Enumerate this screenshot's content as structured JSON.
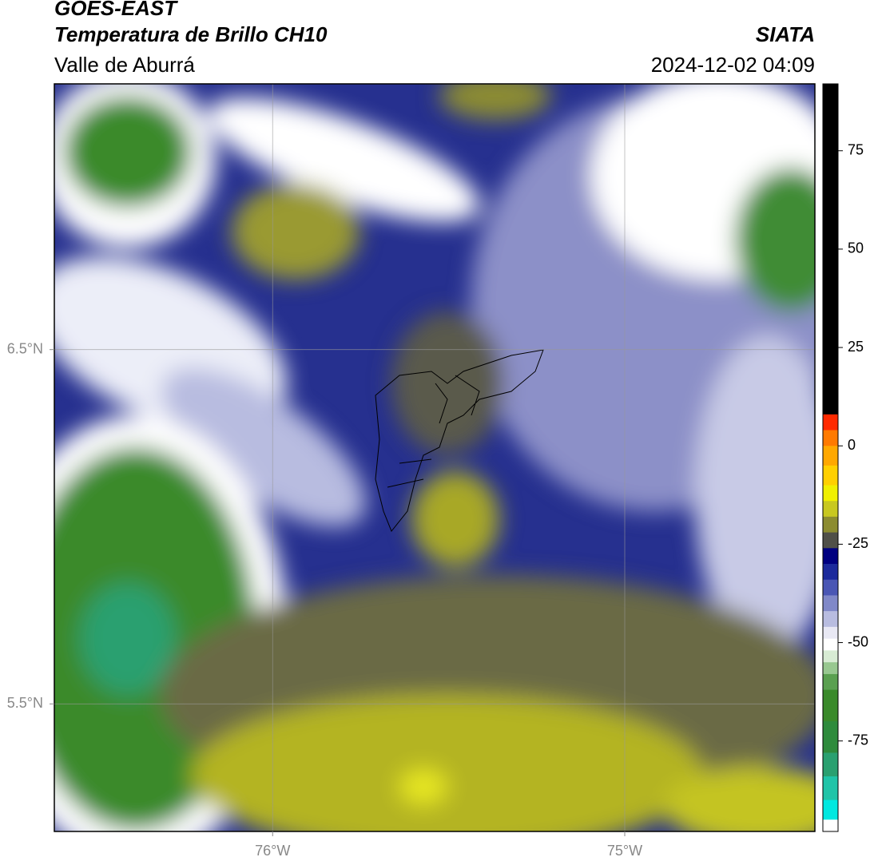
{
  "chart_data": {
    "type": "map",
    "title": "GOES-EAST",
    "subtitle": "Temperatura de Brillo CH10",
    "region": "Valle de Aburrá",
    "source": "SIATA",
    "timestamp": "2024-12-02 04:09",
    "xlim": [
      -76.62,
      -74.46
    ],
    "ylim": [
      5.14,
      7.25
    ],
    "xticks": [
      {
        "value": -76,
        "label": "76°W"
      },
      {
        "value": -75,
        "label": "75°W"
      }
    ],
    "yticks": [
      {
        "value": 6.5,
        "label": "6.5°N"
      },
      {
        "value": 5.5,
        "label": "5.5°N"
      }
    ],
    "grid": true,
    "colorbar": {
      "lim": [
        -98,
        92
      ],
      "ticks": [
        75,
        50,
        25,
        0,
        -25,
        -50,
        -75
      ],
      "bounds": [
        92,
        8,
        4,
        0,
        -5,
        -10,
        -14,
        -18,
        -22,
        -26,
        -30,
        -34,
        -38,
        -42,
        -46,
        -49,
        -52,
        -55,
        -58,
        -62,
        -70,
        -78,
        -84,
        -90,
        -95,
        -98
      ],
      "colors": [
        "#000000",
        "#ff2a00",
        "#ff7a00",
        "#ffa800",
        "#ffd000",
        "#f0f000",
        "#c8c820",
        "#8c8c30",
        "#505048",
        "#000080",
        "#1c2a9c",
        "#4a56b4",
        "#8088c8",
        "#b8bce0",
        "#e8e8f4",
        "#ffffff",
        "#d8ecd4",
        "#98c890",
        "#5aa050",
        "#3a8a2a",
        "#2e8b3c",
        "#2aa070",
        "#20c4a8",
        "#00e8e0",
        "#ffffff"
      ]
    }
  }
}
